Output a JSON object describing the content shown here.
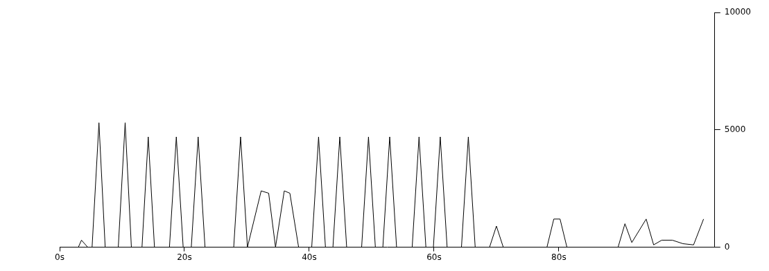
{
  "chart_data": {
    "type": "line",
    "x": [
      0.5,
      3,
      3.5,
      4.5,
      5.2,
      6.3,
      7.3,
      9.4,
      10.5,
      11.5,
      13.2,
      14.2,
      15.2,
      17.6,
      18.7,
      19.8,
      21.1,
      22.2,
      23.3,
      27.9,
      29,
      30.1,
      32.3,
      33.5,
      34.6,
      36,
      36.9,
      38.3,
      40.4,
      41.5,
      42.6,
      43.8,
      44.9,
      46,
      48.4,
      49.5,
      50.6,
      51.8,
      52.9,
      54,
      56.5,
      57.6,
      58.7,
      59.9,
      61,
      62.1,
      64.4,
      65.5,
      66.6,
      68.9,
      70,
      71.1,
      78.1,
      79.2,
      80.2,
      81.3,
      89.5,
      90.6,
      91.7,
      94,
      95.2,
      96.5,
      98.2,
      99.9,
      101.6,
      103.2
    ],
    "values": [
      0,
      0,
      300,
      0,
      0,
      5300,
      0,
      0,
      5300,
      0,
      0,
      4700,
      0,
      0,
      4700,
      0,
      0,
      4700,
      0,
      0,
      4700,
      0,
      2400,
      2300,
      0,
      2400,
      2300,
      0,
      0,
      4700,
      0,
      0,
      4700,
      0,
      0,
      4700,
      0,
      0,
      4700,
      0,
      0,
      4700,
      0,
      0,
      4700,
      0,
      0,
      4700,
      0,
      0,
      900,
      0,
      0,
      1200,
      1200,
      0,
      0,
      1000,
      200,
      1200,
      100,
      300,
      300,
      150,
      100,
      1200
    ],
    "color": "#000000",
    "xlim": [
      0,
      105
    ],
    "xticks": [
      {
        "value": 0,
        "label": "0s"
      },
      {
        "value": 20,
        "label": "20s"
      },
      {
        "value": 40,
        "label": "40s"
      },
      {
        "value": 60,
        "label": "60s"
      },
      {
        "value": 80,
        "label": "80s"
      }
    ],
    "ylim": [
      0,
      10000
    ],
    "yticks": [
      0,
      5000,
      10000
    ],
    "grid": false
  }
}
